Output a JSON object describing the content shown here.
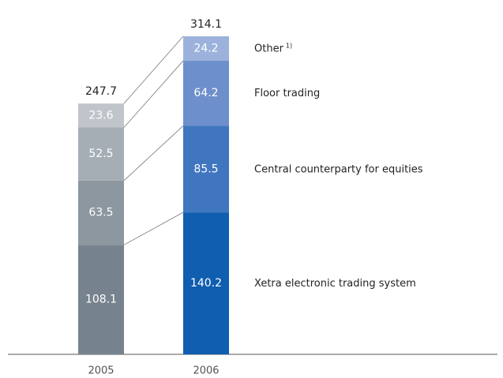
{
  "chart_data": {
    "type": "stacked_bar",
    "categories": [
      "2005",
      "2006"
    ],
    "totals": [
      247.7,
      314.1
    ],
    "series": [
      {
        "name": "Xetra electronic trading system",
        "color": [
          "#76838e",
          "#0f5eb0"
        ],
        "values": [
          108.1,
          140.2
        ]
      },
      {
        "name": "Central counterparty for equities",
        "color": [
          "#8c979f",
          "#3f76bf"
        ],
        "values": [
          63.5,
          85.5
        ]
      },
      {
        "name": "Floor trading",
        "color": [
          "#a6aeb5",
          "#6d8fcb"
        ],
        "values": [
          52.5,
          64.2
        ]
      },
      {
        "name": "Other",
        "footnote_mark": "1)",
        "color": [
          "#bfc5ca",
          "#9cb2dd"
        ],
        "values": [
          23.6,
          24.2
        ]
      }
    ]
  }
}
